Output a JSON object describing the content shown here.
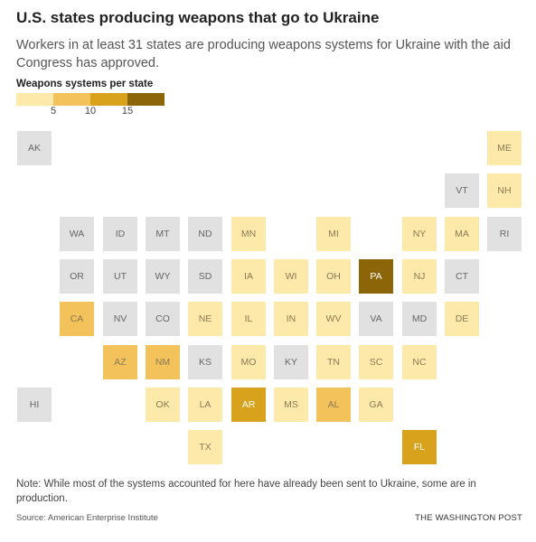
{
  "title": "U.S. states producing weapons that go to Ukraine",
  "subtitle": "Workers in at least 31 states are producing weapons systems for Ukraine with the aid Congress has approved.",
  "legend": {
    "title": "Weapons systems per state",
    "ticks": [
      "5",
      "10",
      "15"
    ],
    "colors": [
      "#fde9a9",
      "#f3c25a",
      "#d9a21c",
      "#8c6508"
    ],
    "no_data_color": "#e1e1e1"
  },
  "states": [
    {
      "abbr": "AK",
      "row": 0,
      "col": 0,
      "level": 0
    },
    {
      "abbr": "ME",
      "row": 0,
      "col": 11,
      "level": 1
    },
    {
      "abbr": "VT",
      "row": 1,
      "col": 10,
      "level": 0
    },
    {
      "abbr": "NH",
      "row": 1,
      "col": 11,
      "level": 1
    },
    {
      "abbr": "WA",
      "row": 2,
      "col": 1,
      "level": 0
    },
    {
      "abbr": "ID",
      "row": 2,
      "col": 2,
      "level": 0
    },
    {
      "abbr": "MT",
      "row": 2,
      "col": 3,
      "level": 0
    },
    {
      "abbr": "ND",
      "row": 2,
      "col": 4,
      "level": 0
    },
    {
      "abbr": "MN",
      "row": 2,
      "col": 5,
      "level": 1
    },
    {
      "abbr": "MI",
      "row": 2,
      "col": 7,
      "level": 1
    },
    {
      "abbr": "NY",
      "row": 2,
      "col": 9,
      "level": 1
    },
    {
      "abbr": "MA",
      "row": 2,
      "col": 10,
      "level": 1
    },
    {
      "abbr": "RI",
      "row": 2,
      "col": 11,
      "level": 0
    },
    {
      "abbr": "OR",
      "row": 3,
      "col": 1,
      "level": 0
    },
    {
      "abbr": "UT",
      "row": 3,
      "col": 2,
      "level": 0
    },
    {
      "abbr": "WY",
      "row": 3,
      "col": 3,
      "level": 0
    },
    {
      "abbr": "SD",
      "row": 3,
      "col": 4,
      "level": 0
    },
    {
      "abbr": "IA",
      "row": 3,
      "col": 5,
      "level": 1
    },
    {
      "abbr": "WI",
      "row": 3,
      "col": 6,
      "level": 1
    },
    {
      "abbr": "OH",
      "row": 3,
      "col": 7,
      "level": 1
    },
    {
      "abbr": "PA",
      "row": 3,
      "col": 8,
      "level": 4
    },
    {
      "abbr": "NJ",
      "row": 3,
      "col": 9,
      "level": 1
    },
    {
      "abbr": "CT",
      "row": 3,
      "col": 10,
      "level": 0
    },
    {
      "abbr": "CA",
      "row": 4,
      "col": 1,
      "level": 2
    },
    {
      "abbr": "NV",
      "row": 4,
      "col": 2,
      "level": 0
    },
    {
      "abbr": "CO",
      "row": 4,
      "col": 3,
      "level": 0
    },
    {
      "abbr": "NE",
      "row": 4,
      "col": 4,
      "level": 1
    },
    {
      "abbr": "IL",
      "row": 4,
      "col": 5,
      "level": 1
    },
    {
      "abbr": "IN",
      "row": 4,
      "col": 6,
      "level": 1
    },
    {
      "abbr": "WV",
      "row": 4,
      "col": 7,
      "level": 1
    },
    {
      "abbr": "VA",
      "row": 4,
      "col": 8,
      "level": 0
    },
    {
      "abbr": "MD",
      "row": 4,
      "col": 9,
      "level": 0
    },
    {
      "abbr": "DE",
      "row": 4,
      "col": 10,
      "level": 1
    },
    {
      "abbr": "AZ",
      "row": 5,
      "col": 2,
      "level": 2
    },
    {
      "abbr": "NM",
      "row": 5,
      "col": 3,
      "level": 2
    },
    {
      "abbr": "KS",
      "row": 5,
      "col": 4,
      "level": 0
    },
    {
      "abbr": "MO",
      "row": 5,
      "col": 5,
      "level": 1
    },
    {
      "abbr": "KY",
      "row": 5,
      "col": 6,
      "level": 0
    },
    {
      "abbr": "TN",
      "row": 5,
      "col": 7,
      "level": 1
    },
    {
      "abbr": "SC",
      "row": 5,
      "col": 8,
      "level": 1
    },
    {
      "abbr": "NC",
      "row": 5,
      "col": 9,
      "level": 1
    },
    {
      "abbr": "HI",
      "row": 6,
      "col": 0,
      "level": 0
    },
    {
      "abbr": "OK",
      "row": 6,
      "col": 3,
      "level": 1
    },
    {
      "abbr": "LA",
      "row": 6,
      "col": 4,
      "level": 1
    },
    {
      "abbr": "AR",
      "row": 6,
      "col": 5,
      "level": 3
    },
    {
      "abbr": "MS",
      "row": 6,
      "col": 6,
      "level": 1
    },
    {
      "abbr": "AL",
      "row": 6,
      "col": 7,
      "level": 2
    },
    {
      "abbr": "GA",
      "row": 6,
      "col": 8,
      "level": 1
    },
    {
      "abbr": "TX",
      "row": 7,
      "col": 4,
      "level": 1
    },
    {
      "abbr": "FL",
      "row": 7,
      "col": 9,
      "level": 3
    }
  ],
  "note": "Note: While most of the systems accounted for here have already been sent to Ukraine, some are in production.",
  "source": "Source: American Enterprise Institute",
  "credit": "THE WASHINGTON POST"
}
